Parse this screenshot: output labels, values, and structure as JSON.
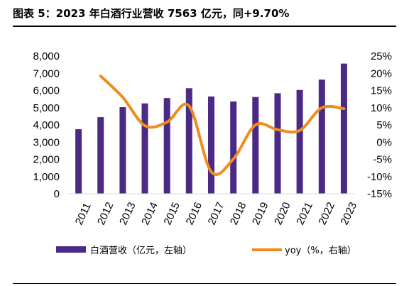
{
  "title": "图表 5：2023 年白酒行业营收 7563 亿元，同+9.70%",
  "colors": {
    "bar": "#4B2A86",
    "line": "#F08C1E",
    "text": "#000000"
  },
  "chart_data": {
    "type": "bar",
    "categories": [
      "2011",
      "2012",
      "2013",
      "2014",
      "2015",
      "2016",
      "2017",
      "2018",
      "2019",
      "2020",
      "2021",
      "2022",
      "2023"
    ],
    "series": [
      {
        "name": "白酒营收（亿元，左轴）",
        "type": "bar",
        "axis": "left",
        "values": [
          3750,
          4450,
          5030,
          5250,
          5560,
          6130,
          5650,
          5360,
          5620,
          5840,
          6030,
          6630,
          7563
        ]
      },
      {
        "name": "yoy（%，右轴）",
        "type": "line",
        "axis": "right",
        "smooth": true,
        "values": [
          null,
          19.2,
          13.0,
          4.8,
          5.8,
          10.5,
          -8.6,
          -4.9,
          5.0,
          3.6,
          3.4,
          10.0,
          9.7
        ]
      }
    ],
    "y_left": {
      "ticks": [
        "0",
        "1,000",
        "2,000",
        "3,000",
        "4,000",
        "5,000",
        "6,000",
        "7,000",
        "8,000"
      ],
      "range": [
        0,
        8000
      ]
    },
    "y_right": {
      "ticks": [
        "-15%",
        "-10%",
        "-5%",
        "0%",
        "5%",
        "10%",
        "15%",
        "20%",
        "25%"
      ],
      "range": [
        -15,
        25
      ]
    },
    "legend_position": "bottom",
    "grid": false
  }
}
